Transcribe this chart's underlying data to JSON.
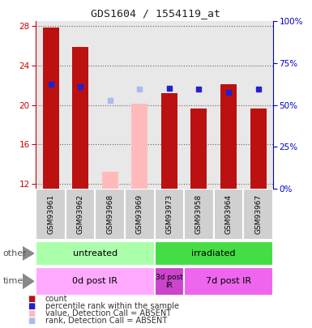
{
  "title": "GDS1604 / 1554119_at",
  "samples": [
    "GSM93961",
    "GSM93962",
    "GSM93968",
    "GSM93969",
    "GSM93973",
    "GSM93958",
    "GSM93964",
    "GSM93967"
  ],
  "count_values": [
    27.9,
    25.9,
    null,
    null,
    21.2,
    19.6,
    22.1,
    19.6
  ],
  "count_absent_values": [
    null,
    null,
    13.2,
    20.1,
    null,
    null,
    null,
    null
  ],
  "rank_values": [
    22.1,
    21.9,
    null,
    null,
    21.7,
    21.6,
    21.3,
    21.6
  ],
  "rank_absent_values": [
    null,
    null,
    20.5,
    21.6,
    null,
    null,
    null,
    null
  ],
  "ylim_left": [
    11.5,
    28.5
  ],
  "yticks_left": [
    12,
    16,
    20,
    24,
    28
  ],
  "yticks_right": [
    0,
    25,
    50,
    75,
    100
  ],
  "other_row": [
    {
      "label": "untreated",
      "span": [
        0,
        4
      ],
      "color": "#aaffaa"
    },
    {
      "label": "irradiated",
      "span": [
        4,
        8
      ],
      "color": "#44dd44"
    }
  ],
  "time_row": [
    {
      "label": "0d post IR",
      "span": [
        0,
        4
      ],
      "color": "#ffaaff"
    },
    {
      "label": "3d post\nIR",
      "span": [
        4,
        5
      ],
      "color": "#cc44cc"
    },
    {
      "label": "7d post IR",
      "span": [
        5,
        8
      ],
      "color": "#ee66ee"
    }
  ],
  "color_count": "#bb1111",
  "color_rank": "#2222cc",
  "color_count_absent": "#ffbbbb",
  "color_rank_absent": "#aabbee",
  "left_axis_color": "#cc0000",
  "right_axis_color": "#0000cc",
  "col_bg_even": "#e8e8e8",
  "col_bg_odd": "#f4f4f4"
}
